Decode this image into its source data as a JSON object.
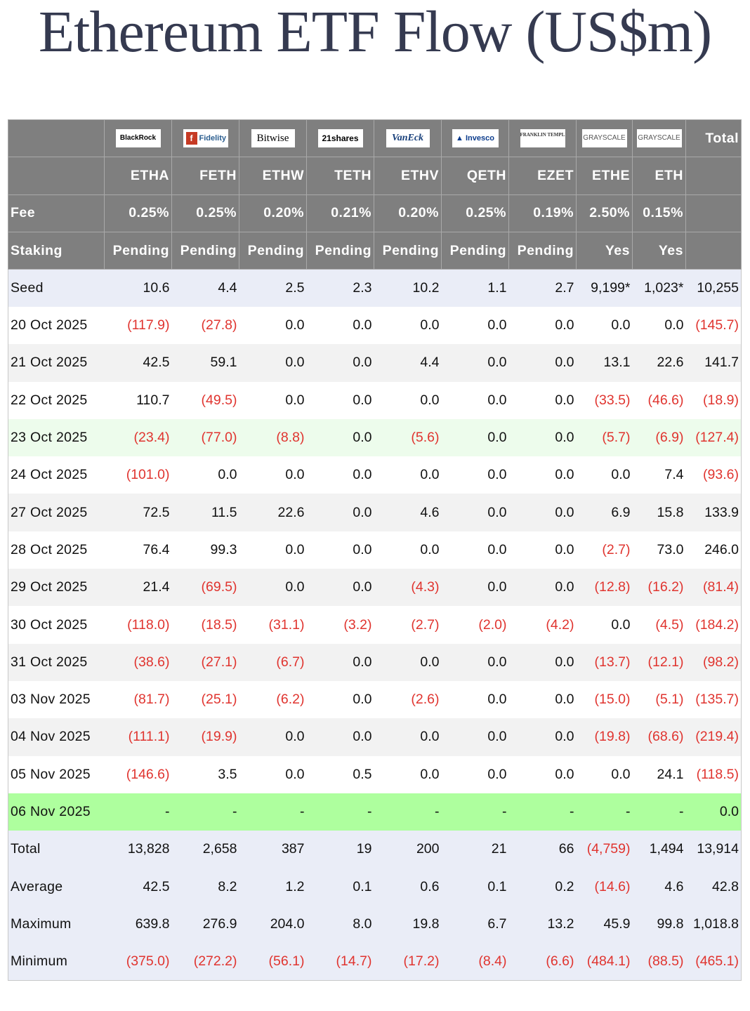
{
  "title": "Ethereum ETF Flow (US$m)",
  "issuers": [
    {
      "logo_text": "BlackRock",
      "logo": "blackrock-logo"
    },
    {
      "logo_text": "Fidelity",
      "logo": "fidelity-logo"
    },
    {
      "logo_text": "Bitwise",
      "logo": "bitwise-logo"
    },
    {
      "logo_text": "21shares",
      "logo": "21shares-logo"
    },
    {
      "logo_text": "VanEck",
      "logo": "vaneck-logo"
    },
    {
      "logo_text": "Invesco",
      "logo": "invesco-logo"
    },
    {
      "logo_text": "FRANKLIN TEMPLETON",
      "logo": "franklin-templeton-logo"
    },
    {
      "logo_text": "GRAYSCALE",
      "logo": "grayscale-logo"
    },
    {
      "logo_text": "GRAYSCALE",
      "logo": "grayscale-logo"
    }
  ],
  "header": {
    "total_label": "Total",
    "tickers": [
      "ETHA",
      "FETH",
      "ETHW",
      "TETH",
      "ETHV",
      "QETH",
      "EZET",
      "ETHE",
      "ETH"
    ],
    "fee_label": "Fee",
    "fees": [
      "0.25%",
      "0.25%",
      "0.20%",
      "0.21%",
      "0.20%",
      "0.25%",
      "0.19%",
      "2.50%",
      "0.15%"
    ],
    "staking_label": "Staking",
    "staking": [
      "Pending",
      "Pending",
      "Pending",
      "Pending",
      "Pending",
      "Pending",
      "Pending",
      "Yes",
      "Yes"
    ]
  },
  "rows": [
    {
      "label": "Seed",
      "values": [
        "10.6",
        "4.4",
        "2.5",
        "2.3",
        "10.2",
        "1.1",
        "2.7",
        "9,199*",
        "1,023*",
        "10,255"
      ]
    },
    {
      "label": "20 Oct 2025",
      "values": [
        "(117.9)",
        "(27.8)",
        "0.0",
        "0.0",
        "0.0",
        "0.0",
        "0.0",
        "0.0",
        "0.0",
        "(145.7)"
      ]
    },
    {
      "label": "21 Oct 2025",
      "values": [
        "42.5",
        "59.1",
        "0.0",
        "0.0",
        "4.4",
        "0.0",
        "0.0",
        "13.1",
        "22.6",
        "141.7"
      ]
    },
    {
      "label": "22 Oct 2025",
      "values": [
        "110.7",
        "(49.5)",
        "0.0",
        "0.0",
        "0.0",
        "0.0",
        "0.0",
        "(33.5)",
        "(46.6)",
        "(18.9)"
      ]
    },
    {
      "label": "23 Oct 2025",
      "values": [
        "(23.4)",
        "(77.0)",
        "(8.8)",
        "0.0",
        "(5.6)",
        "0.0",
        "0.0",
        "(5.7)",
        "(6.9)",
        "(127.4)"
      ]
    },
    {
      "label": "24 Oct 2025",
      "values": [
        "(101.0)",
        "0.0",
        "0.0",
        "0.0",
        "0.0",
        "0.0",
        "0.0",
        "0.0",
        "7.4",
        "(93.6)"
      ]
    },
    {
      "label": "27 Oct 2025",
      "values": [
        "72.5",
        "11.5",
        "22.6",
        "0.0",
        "4.6",
        "0.0",
        "0.0",
        "6.9",
        "15.8",
        "133.9"
      ]
    },
    {
      "label": "28 Oct 2025",
      "values": [
        "76.4",
        "99.3",
        "0.0",
        "0.0",
        "0.0",
        "0.0",
        "0.0",
        "(2.7)",
        "73.0",
        "246.0"
      ]
    },
    {
      "label": "29 Oct 2025",
      "values": [
        "21.4",
        "(69.5)",
        "0.0",
        "0.0",
        "(4.3)",
        "0.0",
        "0.0",
        "(12.8)",
        "(16.2)",
        "(81.4)"
      ]
    },
    {
      "label": "30 Oct 2025",
      "values": [
        "(118.0)",
        "(18.5)",
        "(31.1)",
        "(3.2)",
        "(2.7)",
        "(2.0)",
        "(4.2)",
        "0.0",
        "(4.5)",
        "(184.2)"
      ]
    },
    {
      "label": "31 Oct 2025",
      "values": [
        "(38.6)",
        "(27.1)",
        "(6.7)",
        "0.0",
        "0.0",
        "0.0",
        "0.0",
        "(13.7)",
        "(12.1)",
        "(98.2)"
      ]
    },
    {
      "label": "03 Nov 2025",
      "values": [
        "(81.7)",
        "(25.1)",
        "(6.2)",
        "0.0",
        "(2.6)",
        "0.0",
        "0.0",
        "(15.0)",
        "(5.1)",
        "(135.7)"
      ]
    },
    {
      "label": "04 Nov 2025",
      "values": [
        "(111.1)",
        "(19.9)",
        "0.0",
        "0.0",
        "0.0",
        "0.0",
        "0.0",
        "(19.8)",
        "(68.6)",
        "(219.4)"
      ]
    },
    {
      "label": "05 Nov 2025",
      "values": [
        "(146.6)",
        "3.5",
        "0.0",
        "0.5",
        "0.0",
        "0.0",
        "0.0",
        "0.0",
        "24.1",
        "(118.5)"
      ]
    },
    {
      "label": "06 Nov 2025",
      "values": [
        "-",
        "-",
        "-",
        "-",
        "-",
        "-",
        "-",
        "-",
        "-",
        "0.0"
      ]
    },
    {
      "label": "Total",
      "values": [
        "13,828",
        "2,658",
        "387",
        "19",
        "200",
        "21",
        "66",
        "(4,759)",
        "1,494",
        "13,914"
      ]
    },
    {
      "label": "Average",
      "values": [
        "42.5",
        "8.2",
        "1.2",
        "0.1",
        "0.6",
        "0.1",
        "0.2",
        "(14.6)",
        "4.6",
        "42.8"
      ]
    },
    {
      "label": "Maximum",
      "values": [
        "639.8",
        "276.9",
        "204.0",
        "8.0",
        "19.8",
        "6.7",
        "13.2",
        "45.9",
        "99.8",
        "1,018.8"
      ]
    },
    {
      "label": "Minimum",
      "values": [
        "(375.0)",
        "(272.2)",
        "(56.1)",
        "(14.7)",
        "(17.2)",
        "(8.4)",
        "(6.6)",
        "(484.1)",
        "(88.5)",
        "(465.1)"
      ]
    }
  ],
  "colors": {
    "header_bg": "#7f7f7f",
    "negative_text": "#e0342f",
    "summary_bg": "#eaedf7",
    "stripe_bg": "#f2f2f2",
    "highlight_light_green": "#edfcec",
    "highlight_green": "#aeff9e",
    "title_color": "#353a50"
  }
}
